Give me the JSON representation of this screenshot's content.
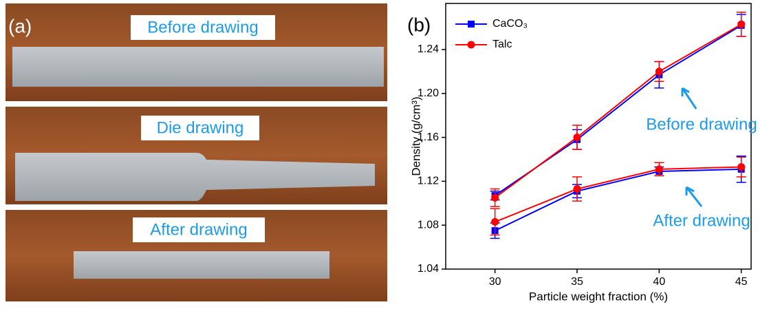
{
  "panel_a": {
    "label": "(a)",
    "photos": [
      "Before drawing",
      "Die drawing",
      "After drawing"
    ]
  },
  "chart_data": {
    "type": "line",
    "panel_label": "(b)",
    "x_label": "Particle weight fraction (%)",
    "y_label": "Density (g/cm³)",
    "x": [
      30,
      35,
      40,
      45
    ],
    "xlim": [
      27,
      45.6
    ],
    "xticks": [
      30,
      35,
      40,
      45
    ],
    "ylim": [
      1.04,
      1.282
    ],
    "yticks": [
      1.04,
      1.08,
      1.12,
      1.16,
      {
        "value": 1.2,
        "label": "1.20"
      },
      1.24
    ],
    "series": [
      {
        "name": "CaCO₃",
        "color": "#0000ff",
        "marker": "square",
        "values": [
          1.107,
          1.158,
          1.217,
          1.262
        ],
        "errors": [
          0.004,
          0.009,
          0.012,
          0.01
        ],
        "after_values": [
          1.075,
          1.111,
          1.129,
          1.131
        ],
        "after_errors": [
          0.007,
          0.006,
          0.004,
          0.012
        ]
      },
      {
        "name": "Talc",
        "color": "#ff0000",
        "marker": "circle",
        "values": [
          1.105,
          1.16,
          1.22,
          1.263
        ],
        "errors": [
          0.008,
          0.011,
          0.009,
          0.011
        ],
        "after_values": [
          1.083,
          1.113,
          1.131,
          1.133
        ],
        "after_errors": [
          0.012,
          0.011,
          0.006,
          0.009
        ]
      }
    ],
    "annotations": [
      "Before drawing",
      "After drawing"
    ],
    "legend": "upper left"
  }
}
